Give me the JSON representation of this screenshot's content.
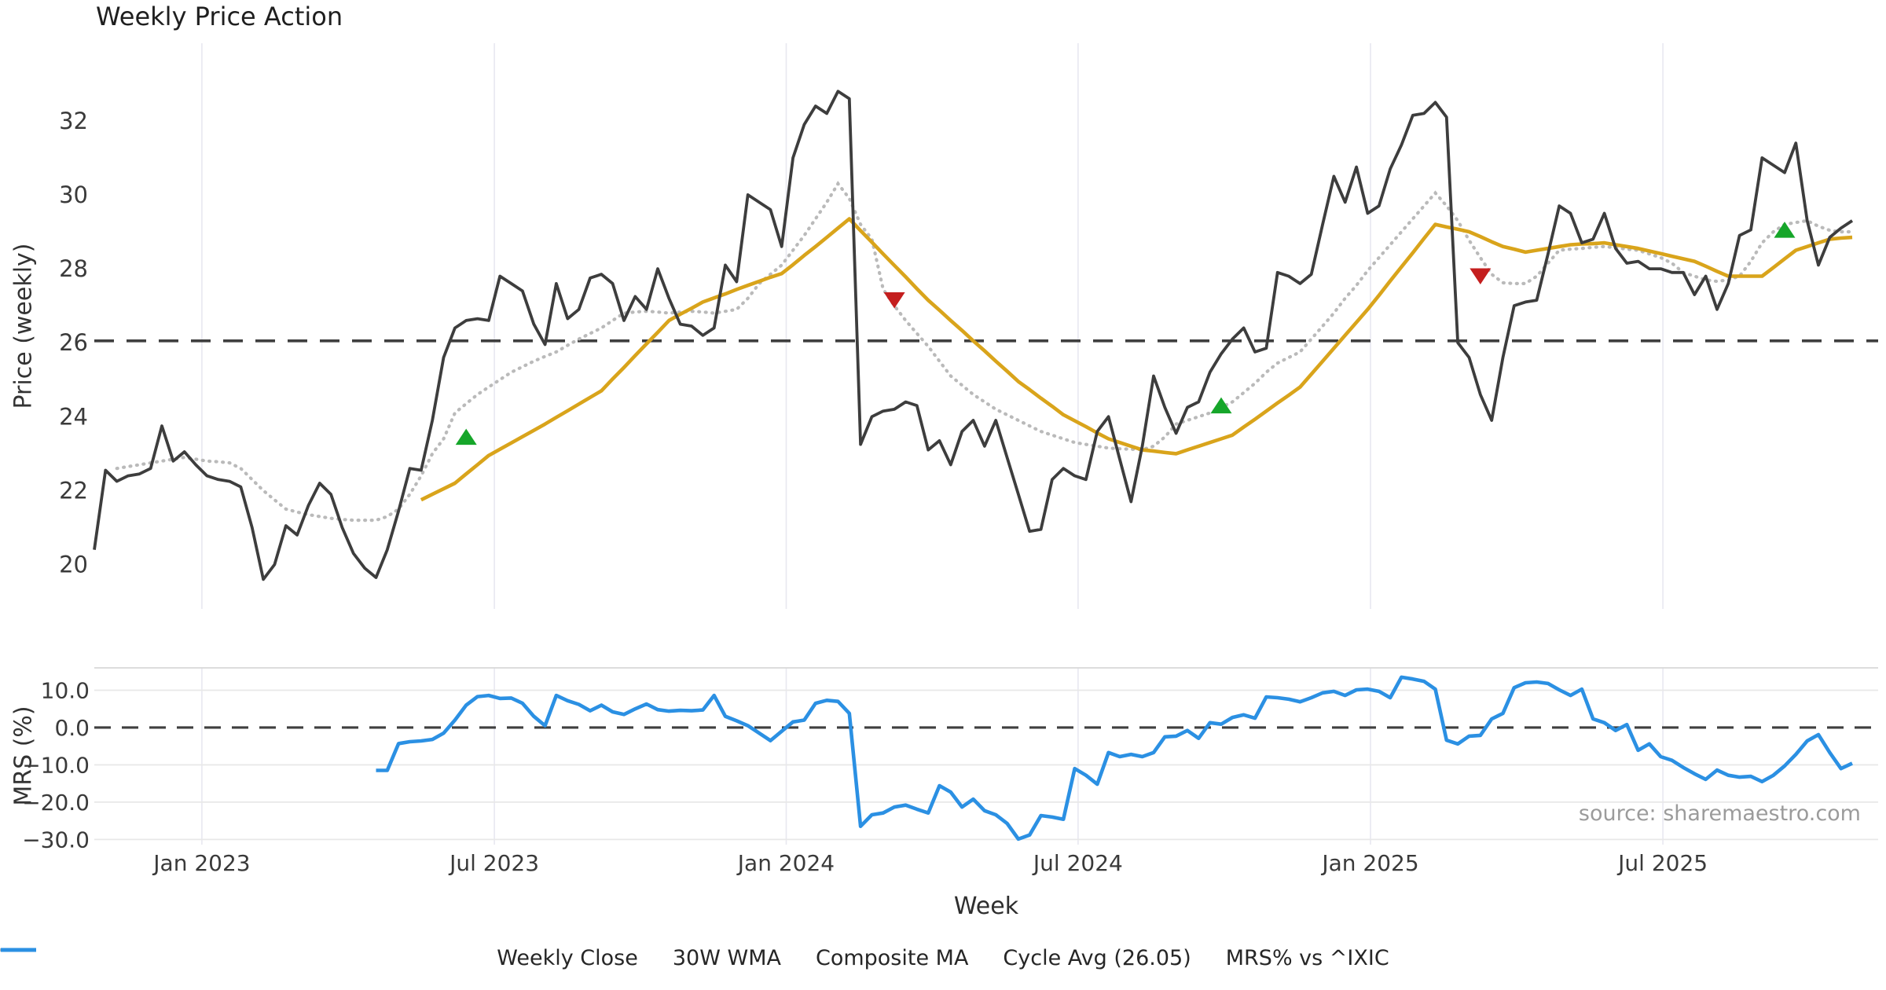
{
  "title": "Weekly Price Action",
  "source": "source: sharemaestro.com",
  "colors": {
    "weekly_close": "#3d3d3d",
    "wma": "#d9a41b",
    "composite": "#bababa",
    "cycle_avg": "#3f3f3f",
    "mrs": "#2b90e3",
    "buy": "#16a62a",
    "sell": "#c41e1e",
    "grid_vertical": "#e8e8f0",
    "grid_horizontal": "#e8e8e8",
    "panel_border": "#d8d8d8",
    "tick_text": "#3a3a3a"
  },
  "x_axis": {
    "label": "Week",
    "ticks": [
      {
        "label": "Jan 2023",
        "week": 9.55
      },
      {
        "label": "Jul 2023",
        "week": 35.5
      },
      {
        "label": "Jan 2024",
        "week": 61.4
      },
      {
        "label": "Jul 2024",
        "week": 87.3
      },
      {
        "label": "Jan 2025",
        "week": 113.25
      },
      {
        "label": "Jul 2025",
        "week": 139.2
      }
    ]
  },
  "legend": [
    {
      "label": "Weekly Close",
      "style": "solid",
      "color": "#3d3d3d",
      "width": 5
    },
    {
      "label": "30W WMA",
      "style": "solid",
      "color": "#d9a41b",
      "width": 5
    },
    {
      "label": "Composite MA",
      "style": "dotted",
      "color": "#bababa",
      "width": 4
    },
    {
      "label": "Cycle Avg (26.05)",
      "style": "dashed",
      "color": "#3f3f3f",
      "width": 3.5
    },
    {
      "label": "MRS% vs ^IXIC",
      "style": "solid",
      "color": "#2b90e3",
      "width": 5
    }
  ],
  "chart_data": [
    {
      "type": "line",
      "panel": "price",
      "ylabel": "Price (weekly)",
      "ylim": [
        18.8,
        34.1
      ],
      "grid": "vertical-only",
      "yticks": [
        {
          "v": 20,
          "label": "20"
        },
        {
          "v": 22,
          "label": "22"
        },
        {
          "v": 24,
          "label": "24"
        },
        {
          "v": 26,
          "label": "26"
        },
        {
          "v": 28,
          "label": "28"
        },
        {
          "v": 30,
          "label": "30"
        },
        {
          "v": 32,
          "label": "32"
        }
      ],
      "cycle_avg": 26.05,
      "series": [
        {
          "name": "Weekly Close",
          "start_week": 0,
          "values": [
            20.4,
            22.55,
            22.25,
            22.4,
            22.45,
            22.6,
            23.75,
            22.8,
            23.05,
            22.7,
            22.4,
            22.3,
            22.25,
            22.1,
            21.0,
            19.6,
            20.0,
            21.05,
            20.8,
            21.6,
            22.2,
            21.9,
            21.0,
            20.3,
            19.9,
            19.65,
            20.4,
            21.45,
            22.6,
            22.55,
            23.9,
            25.6,
            26.4,
            26.6,
            26.65,
            26.6,
            27.8,
            27.6,
            27.4,
            26.5,
            25.95,
            27.6,
            26.65,
            26.9,
            27.75,
            27.85,
            27.6,
            26.6,
            27.25,
            26.9,
            28.0,
            27.2,
            26.5,
            26.45,
            26.2,
            26.4,
            28.1,
            27.65,
            30.0,
            29.8,
            29.6,
            28.6,
            31.0,
            31.9,
            32.4,
            32.2,
            32.8,
            32.6,
            23.25,
            24.0,
            24.15,
            24.2,
            24.4,
            24.3,
            23.1,
            23.35,
            22.7,
            23.6,
            23.9,
            23.2,
            23.9,
            22.9,
            21.9,
            20.9,
            20.95,
            22.3,
            22.6,
            22.4,
            22.3,
            23.6,
            24.0,
            22.85,
            21.7,
            23.2,
            25.1,
            24.25,
            23.55,
            24.25,
            24.4,
            25.2,
            25.7,
            26.1,
            26.4,
            25.75,
            25.85,
            27.9,
            27.8,
            27.6,
            27.85,
            29.2,
            30.5,
            29.8,
            30.75,
            29.5,
            29.7,
            30.7,
            31.35,
            32.15,
            32.2,
            32.5,
            32.1,
            26.0,
            25.6,
            24.6,
            23.9,
            25.6,
            27.0,
            27.1,
            27.15,
            28.4,
            29.7,
            29.5,
            28.7,
            28.8,
            29.5,
            28.55,
            28.15,
            28.2,
            28.0,
            28.0,
            27.9,
            27.9,
            27.3,
            27.8,
            26.9,
            27.6,
            28.9,
            29.05,
            31.0,
            30.8,
            30.6,
            31.4,
            29.3,
            28.1,
            28.85,
            29.1,
            29.3
          ]
        },
        {
          "name": "30W WMA",
          "start_week": 29,
          "values": [
            21.75,
            21.9,
            22.05,
            22.2,
            22.45,
            22.7,
            22.95,
            23.12,
            23.29,
            23.46,
            23.63,
            23.8,
            23.98,
            24.16,
            24.34,
            24.52,
            24.7,
            25.02,
            25.33,
            25.65,
            25.97,
            26.28,
            26.6,
            26.77,
            26.93,
            27.1,
            27.21,
            27.32,
            27.44,
            27.55,
            27.66,
            27.77,
            27.87,
            28.11,
            28.36,
            28.6,
            28.85,
            29.1,
            29.35,
            29.03,
            28.72,
            28.4,
            28.09,
            27.78,
            27.46,
            27.15,
            26.88,
            26.6,
            26.33,
            26.05,
            25.78,
            25.5,
            25.23,
            24.95,
            24.73,
            24.5,
            24.28,
            24.05,
            23.89,
            23.73,
            23.56,
            23.4,
            23.3,
            23.2,
            23.1,
            23.07,
            23.03,
            23.0,
            23.1,
            23.2,
            23.3,
            23.4,
            23.5,
            23.72,
            23.93,
            24.15,
            24.37,
            24.58,
            24.8,
            25.15,
            25.5,
            25.85,
            26.2,
            26.55,
            26.9,
            27.28,
            27.67,
            28.05,
            28.43,
            28.82,
            29.2,
            29.13,
            29.07,
            29.0,
            28.87,
            28.73,
            28.6,
            28.53,
            28.45,
            28.5,
            28.55,
            28.6,
            28.65,
            28.67,
            28.68,
            28.7,
            28.65,
            28.6,
            28.55,
            28.48,
            28.41,
            28.34,
            28.27,
            28.2,
            28.07,
            27.93,
            27.8,
            27.8,
            27.8,
            27.8,
            28.03,
            28.27,
            28.5,
            28.6,
            28.7,
            28.8,
            28.83,
            28.85
          ]
        },
        {
          "name": "Composite MA",
          "start_week": 2,
          "values": [
            22.6,
            22.65,
            22.7,
            22.75,
            22.8,
            22.85,
            22.9,
            22.85,
            22.8,
            22.78,
            22.75,
            22.6,
            22.3,
            22.0,
            21.75,
            21.5,
            21.42,
            21.35,
            21.3,
            21.25,
            21.22,
            21.2,
            21.2,
            21.2,
            21.3,
            21.5,
            21.9,
            22.4,
            23.0,
            23.4,
            24.1,
            24.35,
            24.6,
            24.8,
            25.0,
            25.2,
            25.35,
            25.5,
            25.63,
            25.75,
            25.93,
            26.1,
            26.25,
            26.4,
            26.6,
            26.8,
            26.83,
            26.85,
            26.83,
            26.8,
            26.83,
            26.85,
            26.83,
            26.8,
            26.85,
            26.9,
            27.2,
            27.6,
            27.85,
            28.1,
            28.5,
            28.9,
            29.35,
            29.8,
            30.3,
            29.9,
            29.2,
            28.8,
            27.45,
            27.0,
            26.6,
            26.25,
            25.9,
            25.5,
            25.1,
            24.85,
            24.6,
            24.4,
            24.2,
            24.05,
            23.9,
            23.75,
            23.6,
            23.5,
            23.4,
            23.3,
            23.25,
            23.2,
            23.15,
            23.13,
            23.12,
            23.11,
            23.2,
            23.45,
            23.8,
            23.9,
            24.0,
            24.1,
            24.25,
            24.4,
            24.65,
            24.9,
            25.2,
            25.45,
            25.6,
            25.75,
            26.1,
            26.45,
            26.8,
            27.2,
            27.55,
            27.95,
            28.3,
            28.65,
            29.0,
            29.35,
            29.7,
            30.05,
            29.7,
            29.3,
            28.77,
            28.3,
            27.85,
            27.62,
            27.6,
            27.6,
            27.8,
            28.15,
            28.5,
            28.53,
            28.55,
            28.58,
            28.6,
            28.57,
            28.53,
            28.5,
            28.4,
            28.3,
            28.15,
            27.9,
            27.8,
            27.7,
            27.66,
            27.7,
            27.8,
            28.2,
            28.7,
            29.0,
            29.2,
            29.25,
            29.3,
            29.15,
            29.04,
            29.0,
            29.0
          ]
        }
      ],
      "buy_signals": [
        {
          "week": 33,
          "price": 23.45
        },
        {
          "week": 100,
          "price": 24.3
        },
        {
          "week": 150,
          "price": 29.05
        }
      ],
      "sell_signals": [
        {
          "week": 71,
          "price": 27.15
        },
        {
          "week": 123,
          "price": 27.8
        }
      ]
    },
    {
      "type": "line",
      "panel": "mrs",
      "ylabel": "MRS (%)",
      "ylim": [
        -31.4,
        16.0
      ],
      "grid": "both",
      "zero_line": 0,
      "yticks": [
        {
          "v": 10,
          "label": "10.0"
        },
        {
          "v": 0,
          "label": "0.0"
        },
        {
          "v": -10,
          "label": "−10.0"
        },
        {
          "v": -20,
          "label": "−20.0"
        },
        {
          "v": -30,
          "label": "−30.0"
        }
      ],
      "series": [
        {
          "name": "MRS% vs ^IXIC",
          "start_week": 25,
          "values": [
            -11.5,
            -11.5,
            -4.3,
            -3.8,
            -3.6,
            -3.2,
            -1.5,
            2.0,
            6.0,
            8.3,
            8.6,
            7.8,
            7.9,
            6.5,
            3.0,
            0.5,
            8.6,
            7.2,
            6.2,
            4.5,
            6.0,
            4.2,
            3.5,
            5.0,
            6.3,
            4.8,
            4.4,
            4.6,
            4.5,
            4.7,
            8.6,
            3.0,
            1.8,
            0.5,
            -1.5,
            -3.5,
            -1.0,
            1.5,
            2.0,
            6.5,
            7.3,
            7.0,
            3.8,
            -26.5,
            -23.4,
            -22.9,
            -21.3,
            -20.8,
            -21.9,
            -22.9,
            -15.6,
            -17.3,
            -21.3,
            -19.2,
            -22.3,
            -23.4,
            -25.7,
            -29.9,
            -28.8,
            -23.6,
            -24.0,
            -24.6,
            -11.0,
            -12.8,
            -15.2,
            -6.7,
            -7.8,
            -7.2,
            -7.8,
            -6.7,
            -2.5,
            -2.3,
            -0.8,
            -2.9,
            1.3,
            0.9,
            2.7,
            3.4,
            2.5,
            8.2,
            8.0,
            7.6,
            6.9,
            8.0,
            9.3,
            9.7,
            8.6,
            10.1,
            10.3,
            9.7,
            8.0,
            13.5,
            13.0,
            12.4,
            10.3,
            -3.4,
            -4.4,
            -2.3,
            -2.1,
            2.3,
            3.8,
            10.7,
            12.0,
            12.2,
            11.8,
            10.1,
            8.6,
            10.3,
            2.3,
            1.3,
            -0.8,
            0.8,
            -6.1,
            -4.4,
            -7.8,
            -8.8,
            -10.7,
            -12.4,
            -13.9,
            -11.4,
            -12.8,
            -13.3,
            -13.1,
            -14.5,
            -12.8,
            -10.3,
            -7.2,
            -3.6,
            -1.9,
            -6.7,
            -11.0,
            -9.6
          ]
        }
      ]
    }
  ]
}
